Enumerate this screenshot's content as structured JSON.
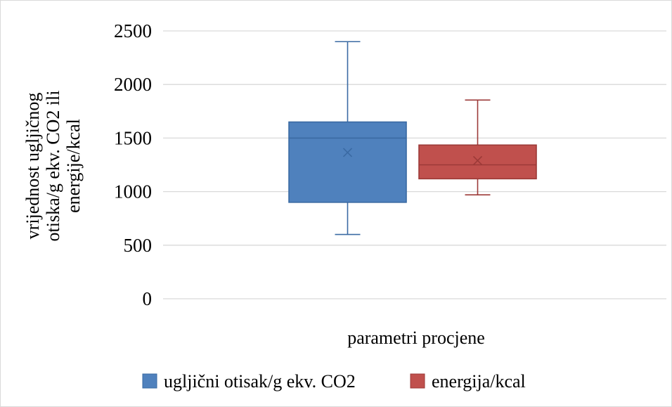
{
  "chart_data": {
    "type": "boxplot",
    "xlabel": "parametri procjene",
    "ylabel_lines": [
      "vrijednost ugljičnog",
      "otiska/g ekv. CO2 ili",
      "energije/kcal"
    ],
    "ylim": [
      0,
      2500
    ],
    "yticks": [
      0,
      500,
      1000,
      1500,
      2000,
      2500
    ],
    "grid": true,
    "legend_position": "bottom",
    "series": [
      {
        "name": "ugljični otisak/g ekv. CO2",
        "color": "#4f81bd",
        "stroke": "#3a6aa3",
        "min": 600,
        "q1": 900,
        "median": 1500,
        "q3": 1650,
        "max": 2400,
        "mean": 1365
      },
      {
        "name": "energija/kcal",
        "color": "#c0504d",
        "stroke": "#9c3a38",
        "min": 970,
        "q1": 1120,
        "median": 1250,
        "q3": 1435,
        "max": 1855,
        "mean": 1290
      }
    ]
  }
}
